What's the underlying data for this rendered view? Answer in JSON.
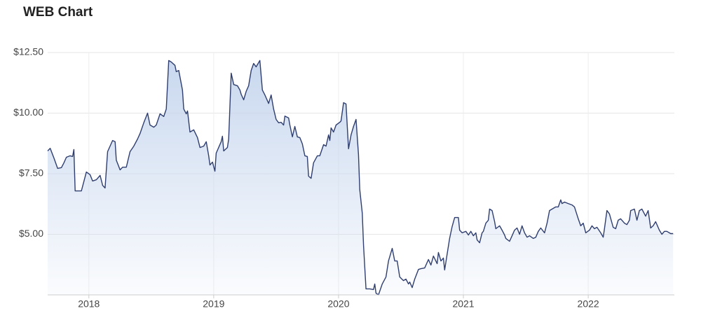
{
  "chart_data": {
    "type": "area",
    "title": "WEB Chart",
    "color": "#2f3e6e",
    "fill_color": "#c6d6ee",
    "grid": true,
    "xlim": [
      2017.67,
      2022.69
    ],
    "xticks": [
      2018,
      2019,
      2020,
      2021,
      2022
    ],
    "ylim": [
      2.5,
      12.5
    ],
    "yticks": [
      {
        "value": 5,
        "label": "$5.00"
      },
      {
        "value": 7.5,
        "label": "$7.50"
      },
      {
        "value": 10,
        "label": "$10.00"
      },
      {
        "value": 12.5,
        "label": "$12.50"
      }
    ],
    "x": [
      2017.67,
      2017.69,
      2017.72,
      2017.75,
      2017.78,
      2017.8,
      2017.82,
      2017.85,
      2017.87,
      2017.88,
      2017.89,
      2017.94,
      2017.98,
      2018.01,
      2018.03,
      2018.06,
      2018.09,
      2018.11,
      2018.13,
      2018.15,
      2018.19,
      2018.21,
      2018.22,
      2018.25,
      2018.27,
      2018.3,
      2018.33,
      2018.36,
      2018.39,
      2018.41,
      2018.44,
      2018.47,
      2018.49,
      2018.52,
      2018.54,
      2018.57,
      2018.6,
      2018.62,
      2018.64,
      2018.66,
      2018.69,
      2018.7,
      2018.72,
      2018.75,
      2018.76,
      2018.78,
      2018.79,
      2018.81,
      2018.84,
      2018.87,
      2018.89,
      2018.92,
      2018.94,
      2018.96,
      2018.97,
      2018.99,
      2019.01,
      2019.02,
      2019.06,
      2019.07,
      2019.08,
      2019.11,
      2019.12,
      2019.14,
      2019.16,
      2019.19,
      2019.21,
      2019.22,
      2019.24,
      2019.26,
      2019.28,
      2019.3,
      2019.32,
      2019.34,
      2019.37,
      2019.39,
      2019.41,
      2019.44,
      2019.46,
      2019.48,
      2019.5,
      2019.52,
      2019.54,
      2019.56,
      2019.57,
      2019.6,
      2019.61,
      2019.63,
      2019.65,
      2019.67,
      2019.69,
      2019.71,
      2019.73,
      2019.75,
      2019.76,
      2019.78,
      2019.8,
      2019.83,
      2019.85,
      2019.88,
      2019.9,
      2019.92,
      2019.93,
      2019.94,
      2019.96,
      2019.98,
      2020.01,
      2020.02,
      2020.04,
      2020.06,
      2020.08,
      2020.1,
      2020.12,
      2020.14,
      2020.16,
      2020.17,
      2020.19,
      2020.2,
      2020.22,
      2020.25,
      2020.28,
      2020.29,
      2020.3,
      2020.32,
      2020.35,
      2020.38,
      2020.4,
      2020.43,
      2020.45,
      2020.47,
      2020.49,
      2020.52,
      2020.54,
      2020.56,
      2020.57,
      2020.59,
      2020.61,
      2020.64,
      2020.66,
      2020.69,
      2020.72,
      2020.74,
      2020.76,
      2020.79,
      2020.8,
      2020.82,
      2020.84,
      2020.85,
      2020.87,
      2020.89,
      2020.91,
      2020.93,
      2020.96,
      2020.97,
      2020.99,
      2021.02,
      2021.04,
      2021.06,
      2021.08,
      2021.1,
      2021.11,
      2021.13,
      2021.15,
      2021.16,
      2021.18,
      2021.2,
      2021.21,
      2021.23,
      2021.25,
      2021.26,
      2021.29,
      2021.31,
      2021.33,
      2021.34,
      2021.37,
      2021.39,
      2021.41,
      2021.43,
      2021.45,
      2021.47,
      2021.49,
      2021.51,
      2021.53,
      2021.56,
      2021.58,
      2021.6,
      2021.62,
      2021.65,
      2021.67,
      2021.69,
      2021.71,
      2021.74,
      2021.76,
      2021.78,
      2021.79,
      2021.81,
      2021.84,
      2021.87,
      2021.89,
      2021.92,
      2021.94,
      2021.96,
      2021.98,
      2022.01,
      2022.03,
      2022.05,
      2022.07,
      2022.1,
      2022.12,
      2022.13,
      2022.15,
      2022.17,
      2022.2,
      2022.22,
      2022.24,
      2022.26,
      2022.29,
      2022.31,
      2022.33,
      2022.34,
      2022.37,
      2022.39,
      2022.41,
      2022.43,
      2022.46,
      2022.48,
      2022.5,
      2022.52,
      2022.54,
      2022.57,
      2022.59,
      2022.61,
      2022.63,
      2022.66,
      2022.68
    ],
    "values": [
      8.44,
      8.55,
      8.15,
      7.72,
      7.75,
      7.95,
      8.18,
      8.24,
      8.21,
      8.5,
      6.79,
      6.79,
      7.57,
      7.46,
      7.2,
      7.25,
      7.43,
      7.02,
      6.91,
      8.41,
      8.87,
      8.82,
      8.06,
      7.66,
      7.77,
      7.77,
      8.41,
      8.64,
      8.93,
      9.16,
      9.6,
      10.0,
      9.51,
      9.42,
      9.51,
      9.97,
      9.86,
      10.17,
      12.17,
      12.11,
      11.97,
      11.71,
      11.76,
      10.95,
      10.17,
      9.97,
      10.09,
      9.22,
      9.31,
      8.99,
      8.58,
      8.64,
      8.82,
      8.24,
      7.86,
      7.98,
      7.6,
      8.35,
      8.82,
      9.05,
      8.44,
      8.58,
      8.93,
      11.65,
      11.18,
      11.13,
      10.95,
      10.78,
      10.55,
      10.9,
      11.13,
      11.76,
      12.05,
      11.91,
      12.17,
      10.95,
      10.75,
      10.4,
      10.75,
      10.17,
      9.74,
      9.6,
      9.62,
      9.51,
      9.88,
      9.8,
      9.51,
      9.02,
      9.45,
      9.02,
      8.99,
      8.73,
      8.24,
      8.21,
      7.4,
      7.31,
      7.95,
      8.24,
      8.24,
      8.7,
      8.64,
      9.1,
      8.87,
      9.39,
      9.22,
      9.51,
      9.62,
      9.68,
      10.43,
      10.38,
      8.53,
      9.1,
      9.45,
      9.74,
      8.29,
      6.85,
      5.87,
      4.54,
      2.75,
      2.75,
      2.72,
      2.95,
      2.57,
      2.5,
      2.95,
      3.24,
      3.9,
      4.42,
      3.9,
      3.9,
      3.24,
      3.09,
      3.15,
      2.95,
      3.03,
      2.8,
      3.15,
      3.55,
      3.58,
      3.61,
      3.96,
      3.73,
      4.1,
      3.79,
      4.25,
      3.9,
      4.02,
      3.53,
      4.19,
      4.83,
      5.32,
      5.69,
      5.69,
      5.17,
      5.06,
      5.12,
      4.97,
      5.12,
      4.94,
      5.06,
      4.77,
      4.65,
      5.06,
      5.12,
      5.46,
      5.58,
      6.04,
      5.98,
      5.52,
      5.23,
      5.35,
      5.17,
      4.97,
      4.83,
      4.71,
      4.94,
      5.17,
      5.26,
      5.0,
      5.35,
      5.06,
      4.88,
      4.94,
      4.83,
      4.88,
      5.12,
      5.26,
      5.06,
      5.46,
      5.98,
      6.04,
      6.13,
      6.13,
      6.42,
      6.27,
      6.33,
      6.27,
      6.21,
      6.13,
      5.64,
      5.35,
      5.46,
      5.06,
      5.17,
      5.35,
      5.23,
      5.29,
      5.06,
      4.88,
      5.23,
      5.98,
      5.84,
      5.29,
      5.23,
      5.58,
      5.64,
      5.46,
      5.4,
      5.58,
      5.98,
      6.04,
      5.58,
      5.98,
      6.04,
      5.75,
      5.98,
      5.26,
      5.35,
      5.52,
      5.17,
      5.0,
      5.12,
      5.12,
      5.03,
      5.03
    ]
  }
}
